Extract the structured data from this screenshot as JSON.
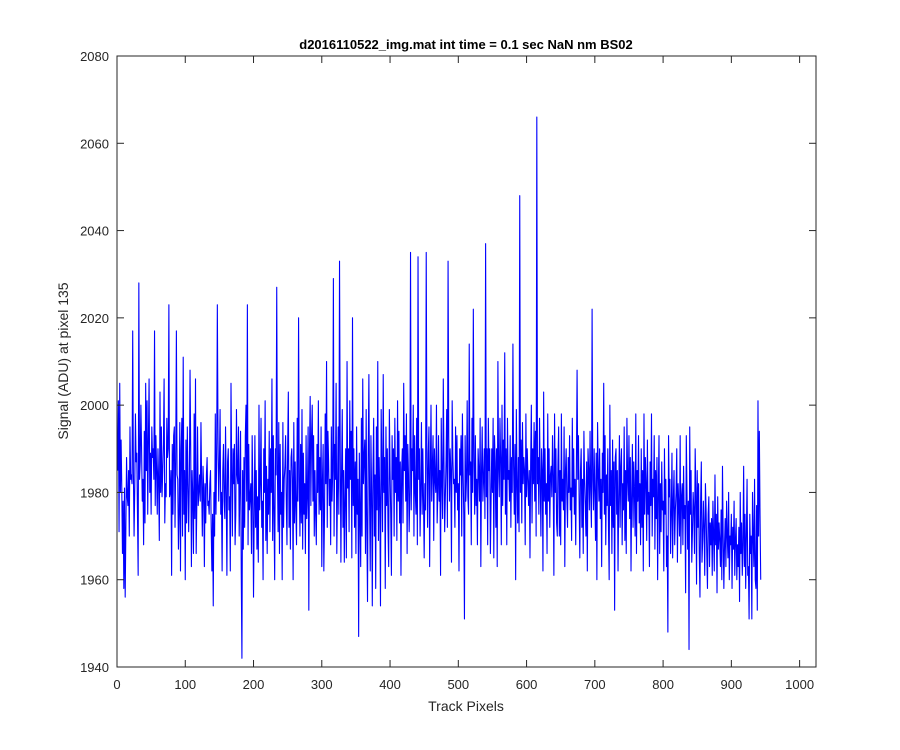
{
  "chart_data": {
    "type": "line",
    "title": "d2016110522_img.mat int time = 0.1 sec  NaN nm BS02",
    "xlabel": "Track Pixels",
    "ylabel": "Signal (ADU) at pixel 135",
    "xlim": [
      0,
      1024
    ],
    "ylim": [
      1940,
      2080
    ],
    "xticks": [
      0,
      100,
      200,
      300,
      400,
      500,
      600,
      700,
      800,
      900,
      1000
    ],
    "yticks": [
      1940,
      1960,
      1980,
      2000,
      2020,
      2040,
      2060,
      2080
    ],
    "grid": false,
    "legend": "none",
    "series": [
      {
        "color": "#0000ff",
        "x_start": 1,
        "x_step": 1,
        "values": [
          1985,
          2001,
          1971,
          2005,
          1980,
          1992,
          1981,
          1966,
          1978,
          1958,
          1981,
          1956,
          1972,
          1988,
          1979,
          1977,
          1985,
          1970,
          1995,
          1983,
          1984,
          1982,
          2017,
          1985,
          1970,
          1981,
          1998,
          1987,
          1989,
          1975,
          1961,
          2028,
          1983,
          1987,
          2000,
          1990,
          1978,
          1983,
          1968,
          1994,
          1973,
          2005,
          1985,
          2001,
          1975,
          1992,
          2006,
          1980,
          1989,
          1975,
          1995,
          1988,
          1990,
          1983,
          2017,
          1977,
          1993,
          1985,
          1975,
          1990,
          1982,
          1969,
          2003,
          1980,
          1995,
          1979,
          1985,
          1991,
          2006,
          1973,
          1982,
          1979,
          1997,
          1988,
          1990,
          2023,
          1979,
          1980,
          1985,
          1961,
          1991,
          1975,
          1993,
          1995,
          1972,
          1987,
          2017,
          1984,
          1983,
          1967,
          1975,
          1996,
          1962,
          1990,
          1997,
          1970,
          2011,
          1975,
          1985,
          1960,
          1992,
          1973,
          1995,
          1982,
          1971,
          1983,
          2008,
          1990,
          1963,
          1985,
          1979,
          1966,
          1998,
          1974,
          2006,
          1966,
          1978,
          1995,
          1977,
          1980,
          1984,
          1978,
          1996,
          1982,
          1970,
          1986,
          1981,
          1963,
          1982,
          1973,
          1984,
          1988,
          1977,
          1978,
          1975,
          1982,
          1985,
          1972,
          1962,
          1975,
          1954,
          1980,
          1970,
          1998,
          1975,
          1988,
          2023,
          1992,
          1978,
          1986,
          1999,
          1975,
          1980,
          1962,
          1985,
          1991,
          1978,
          1974,
          1995,
          1980,
          1961,
          1987,
          1990,
          1976,
          1979,
          1962,
          2005,
          1985,
          1970,
          1990,
          1982,
          1991,
          1968,
          1975,
          1999,
          1984,
          1982,
          1995,
          1970,
          1982,
          1994,
          1962,
          1942,
          1985,
          1967,
          1988,
          1972,
          1993,
          2000,
          1978,
          2023,
          1968,
          1991,
          1976,
          1979,
          1982,
          1966,
          1993,
          1980,
          1956,
          1975,
          1993,
          1972,
          1985,
          1967,
          1979,
          1964,
          2000,
          1976,
          1982,
          1997,
          1972,
          1978,
          1960,
          1990,
          1980,
          2001,
          1969,
          1986,
          1966,
          1983,
          1975,
          1994,
          1971,
          1990,
          1980,
          2006,
          1969,
          1993,
          1975,
          1960,
          1990,
          1984,
          2027,
          1985,
          1971,
          1996,
          1966,
          1991,
          1975,
          1980,
          1960,
          1996,
          1972,
          1983,
          1986,
          1993,
          1978,
          1968,
          1990,
          2003,
          1972,
          1985,
          1967,
          1988,
          1990,
          1983,
          1960,
          1996,
          1973,
          1987,
          1976,
          1968,
          1997,
          1978,
          2020,
          1983,
          1970,
          1991,
          1973,
          1999,
          1967,
          1989,
          1975,
          1982,
          1966,
          1993,
          1974,
          1980,
          1995,
          1953,
          1990,
          2002,
          1977,
          1993,
          2000,
          1978,
          1993,
          1970,
          1985,
          1975,
          1968,
          1991,
          1980,
          2001,
          1975,
          1988,
          1976,
          1995,
          1963,
          1983,
          1991,
          1962,
          1975,
          1998,
          1982,
          2010,
          1972,
          1994,
          1987,
          1977,
          1983,
          1968,
          1995,
          1978,
          1985,
          2029,
          1970,
          1991,
          1983,
          2005,
          1966,
          1980,
          1995,
          1975,
          2033,
          1990,
          1964,
          1985,
          1999,
          1972,
          1985,
          1964,
          1978,
          1990,
          1965,
          2010,
          1981,
          1990,
          1971,
          2001,
          1983,
          1994,
          1965,
          2020,
          1977,
          1990,
          1972,
          1987,
          1966,
          1995,
          1975,
          1983,
          1947,
          1989,
          1975,
          1963,
          1997,
          1970,
          2006,
          1982,
          1988,
          1992,
          1966,
          1999,
          1972,
          1955,
          1988,
          2007,
          1978,
          1962,
          1993,
          1980,
          1954,
          1985,
          1997,
          1970,
          1984,
          1958,
          1995,
          1976,
          2010,
          1969,
          1988,
          1978,
          1954,
          1999,
          1985,
          1971,
          2007,
          1980,
          1988,
          1958,
          1995,
          1977,
          1990,
          1972,
          1963,
          1999,
          1985,
          1975,
          1961,
          1993,
          1983,
          1990,
          1970,
          1997,
          1980,
          1988,
          1969,
          2001,
          1978,
          1994,
          1973,
          1987,
          1961,
          1985,
          1990,
          1973,
          2005,
          1985,
          1993,
          1978,
          1998,
          1966,
          1991,
          1984,
          1971,
          1980,
          2035,
          1976,
          1990,
          1985,
          2000,
          1970,
          1993,
          1980,
          1975,
          1997,
          1968,
          2034,
          1983,
          1990,
          1970,
          1981,
          1996,
          1975,
          1990,
          1978,
          1965,
          1982,
          1976,
          2035,
          1988,
          1972,
          1989,
          1995,
          1963,
          1985,
          2000,
          1978,
          1986,
          1993,
          1969,
          1990,
          1983,
          1980,
          2000,
          1973,
          1980,
          1993,
          1978,
          1985,
          1961,
          1997,
          1983,
          1974,
          2006,
          1987,
          1971,
          1979,
          1987,
          1999,
          1972,
          2033,
          1993,
          1978,
          1990,
          1985,
          1964,
          2001,
          1988,
          1982,
          1983,
          1972,
          1995,
          1980,
          1993,
          1976,
          1982,
          1962,
          1990,
          1984,
          1993,
          1970,
          1998,
          1985,
          1975,
          1951,
          1993,
          1978,
          1983,
          2001,
          1979,
          1975,
          2014,
          1984,
          1987,
          1968,
          1997,
          1980,
          2022,
          1987,
          1975,
          1993,
          1977,
          1983,
          1968,
          1990,
          1985,
          1978,
          1997,
          1963,
          1985,
          1995,
          1978,
          1983,
          1990,
          1974,
          2037,
          1979,
          1990,
          1968,
          1997,
          1985,
          1990,
          1966,
          1978,
          1990,
          1980,
          1997,
          1965,
          1993,
          1987,
          1972,
          1990,
          1963,
          2010,
          1986,
          1979,
          1997,
          1988,
          1968,
          2000,
          1977,
          1992,
          1983,
          2012,
          1975,
          1990,
          1968,
          1997,
          1983,
          1985,
          1978,
          1993,
          1972,
          1988,
          1980,
          2014,
          1986,
          1975,
          1991,
          1960,
          1999,
          1983,
          1973,
          1988,
          1971,
          2048,
          1980,
          1992,
          1973,
          1996,
          1982,
          1988,
          1985,
          1968,
          1998,
          1979,
          1990,
          1983,
          1977,
          1985,
          1965,
          1987,
          2000,
          1973,
          1990,
          1982,
          1996,
          1978,
          1994,
          1970,
          2066,
          1982,
          1988,
          1975,
          1997,
          1983,
          1970,
          1990,
          1985,
          1962,
          2003,
          1978,
          1990,
          1975,
          1982,
          1966,
          1998,
          1978,
          1990,
          1972,
          1984,
          1986,
          1979,
          1993,
          1984,
          1961,
          1998,
          1980,
          1990,
          1973,
          1970,
          1987,
          1995,
          1970,
          1985,
          1968,
          1998,
          1978,
          1983,
          1976,
          1995,
          1963,
          1985,
          1990,
          1979,
          1972,
          1988,
          1980,
          1993,
          1976,
          1981,
          1969,
          1997,
          1979,
          1990,
          1975,
          1983,
          1968,
          1986,
          2008,
          1983,
          1993,
          1978,
          1965,
          1985,
          1990,
          1972,
          1983,
          1966,
          1994,
          1983,
          1977,
          1970,
          1987,
          1962,
          1990,
          1985,
          1976,
          1994,
          1980,
          1972,
          2022,
          1983,
          1976,
          1990,
          1980,
          1969,
          1989,
          1960,
          1996,
          1985,
          1978,
          1990,
          1974,
          1983,
          1963,
          1989,
          1980,
          2005,
          1975,
          1993,
          1968,
          1984,
          1977,
          1990,
          1972,
          1960,
          2000,
          1977,
          1985,
          1966,
          1992,
          1972,
          1987,
          1953,
          1988,
          1990,
          1975,
          1985,
          1962,
          1979,
          1993,
          1972,
          1986,
          1990,
          1968,
          1982,
          1976,
          1995,
          1969,
          1985,
          1966,
          1997,
          1983,
          1978,
          1993,
          1974,
          1988,
          1962,
          1979,
          1991,
          1972,
          1987,
          1980,
          1970,
          1998,
          1966,
          1985,
          1978,
          1993,
          1973,
          1982,
          1968,
          1990,
          1972,
          1985,
          1962,
          1998,
          1975,
          1988,
          1982,
          1969,
          1992,
          1975,
          1980,
          1963,
          1987,
          1977,
          1998,
          1970,
          1983,
          1979,
          1993,
          1967,
          1985,
          1974,
          1988,
          1960,
          1980,
          1993,
          1966,
          1982,
          1971,
          1987,
          1976,
          1978,
          1962,
          1990,
          1975,
          1983,
          1963,
          1970,
          1948,
          1993,
          1979,
          1983,
          1966,
          1975,
          1989,
          1965,
          1978,
          1985,
          1968,
          1976,
          1980,
          1990,
          1964,
          1982,
          1977,
          1970,
          1993,
          1966,
          1979,
          1982,
          1968,
          1986,
          1974,
          1977,
          1957,
          1993,
          1980,
          1967,
          1978,
          1944,
          1995,
          1975,
          1985,
          1964,
          1971,
          1980,
          1976,
          1966,
          1990,
          1980,
          1959,
          1985,
          1972,
          1982,
          1966,
          1956,
          1978,
          1987,
          1964,
          1969,
          1978,
          1972,
          1961,
          1982,
          1976,
          1966,
          1958,
          1975,
          1979,
          1963,
          1973,
          1968,
          1974,
          1961,
          1978,
          1970,
          1962,
          1984,
          1968,
          1975,
          1957,
          1979,
          1967,
          1973,
          1969,
          1963,
          1976,
          1960,
          1986,
          1970,
          1958,
          1968,
          1974,
          1963,
          1978,
          1970,
          1965,
          1980,
          1960,
          1970,
          1968,
          1975,
          1958,
          1972,
          1967,
          1978,
          1961,
          1969,
          1974,
          1960,
          1968,
          1963,
          1972,
          1955,
          1980,
          1966,
          1973,
          1961,
          1968,
          1986,
          1963,
          1975,
          1958,
          1970,
          1983,
          1961,
          1963,
          1951,
          1975,
          1966,
          1970,
          1951,
          1980,
          1970,
          1963,
          1983,
          1960,
          1958,
          1977,
          1953,
          2001,
          1970,
          1994,
          1975,
          1960
        ]
      }
    ]
  }
}
